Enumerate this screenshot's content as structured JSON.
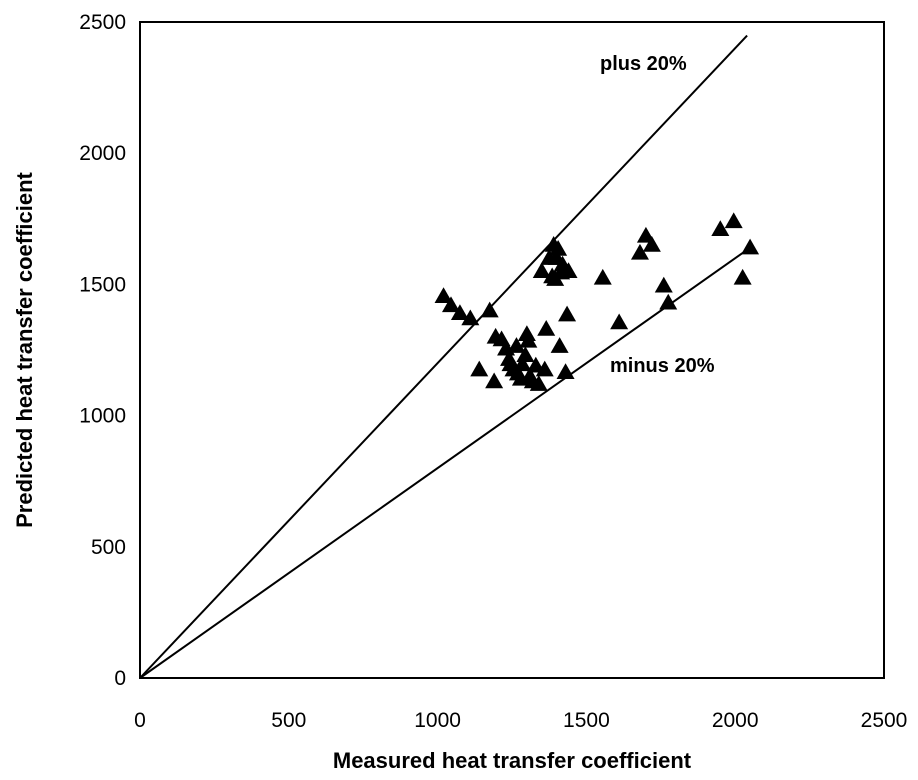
{
  "chart_data": {
    "type": "scatter",
    "xlabel": "Measured heat transfer coefficient",
    "ylabel": "Predicted heat transfer coefficient",
    "xlim": [
      0,
      2500
    ],
    "ylim": [
      0,
      2500
    ],
    "xticks": [
      0,
      500,
      1000,
      1500,
      2000,
      2500
    ],
    "yticks": [
      0,
      500,
      1000,
      1500,
      2000,
      2500
    ],
    "grid": false,
    "marker": "triangle",
    "marker_color": "#000000",
    "lines": [
      {
        "label": "plus 20%",
        "x": [
          0,
          2040
        ],
        "y": [
          0,
          2448
        ]
      },
      {
        "label": "minus 20%",
        "x": [
          0,
          2040
        ],
        "y": [
          0,
          1632
        ]
      }
    ],
    "points": [
      {
        "x": 1020,
        "y": 1455
      },
      {
        "x": 1045,
        "y": 1420
      },
      {
        "x": 1075,
        "y": 1390
      },
      {
        "x": 1110,
        "y": 1370
      },
      {
        "x": 1140,
        "y": 1175
      },
      {
        "x": 1175,
        "y": 1400
      },
      {
        "x": 1195,
        "y": 1300
      },
      {
        "x": 1190,
        "y": 1130
      },
      {
        "x": 1215,
        "y": 1290
      },
      {
        "x": 1230,
        "y": 1255
      },
      {
        "x": 1240,
        "y": 1215
      },
      {
        "x": 1245,
        "y": 1195
      },
      {
        "x": 1255,
        "y": 1175
      },
      {
        "x": 1265,
        "y": 1265
      },
      {
        "x": 1270,
        "y": 1160
      },
      {
        "x": 1280,
        "y": 1140
      },
      {
        "x": 1285,
        "y": 1195
      },
      {
        "x": 1295,
        "y": 1230
      },
      {
        "x": 1300,
        "y": 1310
      },
      {
        "x": 1305,
        "y": 1285
      },
      {
        "x": 1310,
        "y": 1150
      },
      {
        "x": 1320,
        "y": 1130
      },
      {
        "x": 1330,
        "y": 1190
      },
      {
        "x": 1340,
        "y": 1120
      },
      {
        "x": 1350,
        "y": 1550
      },
      {
        "x": 1360,
        "y": 1175
      },
      {
        "x": 1365,
        "y": 1330
      },
      {
        "x": 1375,
        "y": 1600
      },
      {
        "x": 1385,
        "y": 1530
      },
      {
        "x": 1390,
        "y": 1650
      },
      {
        "x": 1395,
        "y": 1520
      },
      {
        "x": 1400,
        "y": 1600
      },
      {
        "x": 1405,
        "y": 1635
      },
      {
        "x": 1410,
        "y": 1265
      },
      {
        "x": 1415,
        "y": 1545
      },
      {
        "x": 1420,
        "y": 1575
      },
      {
        "x": 1430,
        "y": 1165
      },
      {
        "x": 1435,
        "y": 1385
      },
      {
        "x": 1440,
        "y": 1550
      },
      {
        "x": 1555,
        "y": 1525
      },
      {
        "x": 1610,
        "y": 1355
      },
      {
        "x": 1680,
        "y": 1620
      },
      {
        "x": 1700,
        "y": 1685
      },
      {
        "x": 1720,
        "y": 1650
      },
      {
        "x": 1760,
        "y": 1495
      },
      {
        "x": 1775,
        "y": 1430
      },
      {
        "x": 1950,
        "y": 1710
      },
      {
        "x": 1995,
        "y": 1740
      },
      {
        "x": 2025,
        "y": 1525
      },
      {
        "x": 2050,
        "y": 1640
      }
    ]
  }
}
